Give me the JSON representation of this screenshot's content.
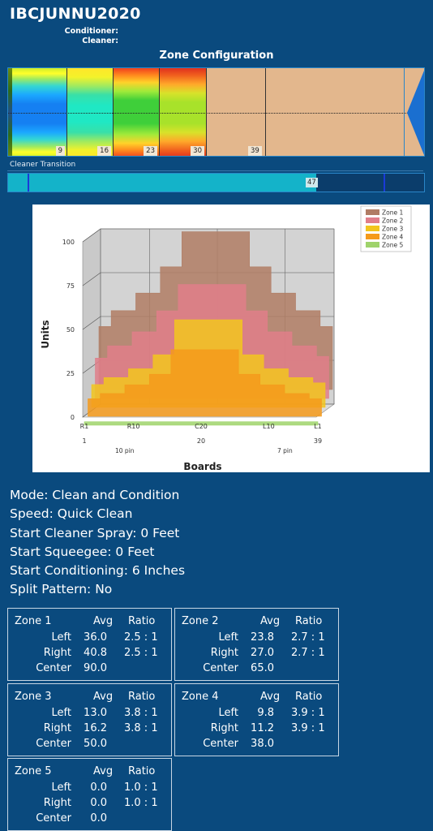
{
  "header": {
    "title": "IBCJUNNU2020",
    "conditioner_label": "Conditioner:",
    "cleaner_label": "Cleaner:"
  },
  "zone_config": {
    "title": "Zone Configuration",
    "block_labels": [
      "9",
      "16",
      "23",
      "30",
      "39"
    ],
    "cleaner_transition_label": "Cleaner Transition",
    "cleaner_transition_value": "47",
    "cleaner_transition_fraction": 0.74
  },
  "chart_data": {
    "type": "area",
    "title": "",
    "xlabel": "Boards",
    "ylabel": "Units",
    "ylim": [
      0,
      100
    ],
    "yticks": [
      "0",
      "25",
      "50",
      "75",
      "100"
    ],
    "xticks": [
      "R1",
      "R10",
      "C20",
      "L10",
      "L1"
    ],
    "xticks_numbers": [
      "1",
      "20",
      "39"
    ],
    "pin_labels": [
      "10 pin",
      "7 pin"
    ],
    "legend_position": "top-right",
    "boards": [
      1,
      5,
      9,
      13,
      16,
      20,
      24,
      27,
      31,
      35,
      39
    ],
    "series": [
      {
        "name": "Zone 1",
        "color": "#b07c64",
        "values": [
          36,
          45,
          55,
          70,
          90,
          90,
          90,
          70,
          55,
          45,
          36
        ]
      },
      {
        "name": "Zone 2",
        "color": "#e07e8a",
        "values": [
          23,
          30,
          38,
          50,
          65,
          65,
          65,
          50,
          38,
          30,
          24
        ]
      },
      {
        "name": "Zone 3",
        "color": "#f2c51e",
        "values": [
          13,
          17,
          22,
          30,
          50,
          50,
          50,
          30,
          22,
          17,
          14
        ]
      },
      {
        "name": "Zone 4",
        "color": "#f59a1b",
        "values": [
          10,
          13,
          18,
          24,
          38,
          38,
          38,
          24,
          18,
          13,
          10
        ]
      },
      {
        "name": "Zone 5",
        "color": "#9fd36b",
        "values": [
          0,
          0,
          0,
          0,
          0,
          0,
          0,
          0,
          0,
          0,
          0
        ]
      }
    ]
  },
  "settings": [
    "Mode: Clean and Condition",
    "Speed: Quick Clean",
    "Start Cleaner Spray: 0 Feet",
    "Start Squeegee: 0 Feet",
    "Start Conditioning: 6 Inches",
    "Split Pattern: No"
  ],
  "zones": [
    {
      "name": "Zone 1",
      "avg": "Avg",
      "ratio": "Ratio",
      "left_label": "Left",
      "right_label": "Right",
      "center_label": "Center",
      "left_avg": "36.0",
      "left_ratio": "2.5 : 1",
      "right_avg": "40.8",
      "right_ratio": "2.5 : 1",
      "center_avg": "90.0"
    },
    {
      "name": "Zone 2",
      "avg": "Avg",
      "ratio": "Ratio",
      "left_label": "Left",
      "right_label": "Right",
      "center_label": "Center",
      "left_avg": "23.8",
      "left_ratio": "2.7 : 1",
      "right_avg": "27.0",
      "right_ratio": "2.7 : 1",
      "center_avg": "65.0"
    },
    {
      "name": "Zone 3",
      "avg": "Avg",
      "ratio": "Ratio",
      "left_label": "Left",
      "right_label": "Right",
      "center_label": "Center",
      "left_avg": "13.0",
      "left_ratio": "3.8 : 1",
      "right_avg": "16.2",
      "right_ratio": "3.8 : 1",
      "center_avg": "50.0"
    },
    {
      "name": "Zone 4",
      "avg": "Avg",
      "ratio": "Ratio",
      "left_label": "Left",
      "right_label": "Right",
      "center_label": "Center",
      "left_avg": "9.8",
      "left_ratio": "3.9 : 1",
      "right_avg": "11.2",
      "right_ratio": "3.9 : 1",
      "center_avg": "38.0"
    },
    {
      "name": "Zone 5",
      "avg": "Avg",
      "ratio": "Ratio",
      "left_label": "Left",
      "right_label": "Right",
      "center_label": "Center",
      "left_avg": "0.0",
      "left_ratio": "1.0 : 1",
      "right_avg": "0.0",
      "right_ratio": "1.0 : 1",
      "center_avg": "0.0"
    }
  ]
}
